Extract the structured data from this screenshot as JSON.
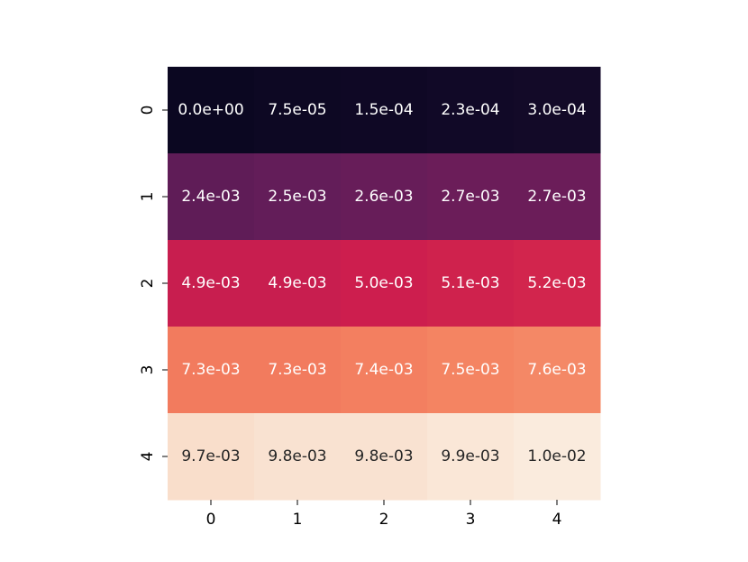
{
  "chart_data": {
    "type": "heatmap",
    "title": "",
    "xlabel": "",
    "ylabel": "",
    "x_categories": [
      "0",
      "1",
      "2",
      "3",
      "4"
    ],
    "y_categories": [
      "0",
      "1",
      "2",
      "3",
      "4"
    ],
    "values": [
      [
        0.0,
        7.5e-05,
        0.00015,
        0.00023,
        0.0003
      ],
      [
        0.0024,
        0.0025,
        0.0026,
        0.0027,
        0.0027
      ],
      [
        0.0049,
        0.0049,
        0.005,
        0.0051,
        0.0052
      ],
      [
        0.0073,
        0.0073,
        0.0074,
        0.0075,
        0.0076
      ],
      [
        0.0097,
        0.0098,
        0.0098,
        0.0099,
        0.01
      ]
    ],
    "labels": [
      [
        "0.0e+00",
        "7.5e-05",
        "1.5e-04",
        "2.3e-04",
        "3.0e-04"
      ],
      [
        "2.4e-03",
        "2.5e-03",
        "2.6e-03",
        "2.7e-03",
        "2.7e-03"
      ],
      [
        "4.9e-03",
        "4.9e-03",
        "5.0e-03",
        "5.1e-03",
        "5.2e-03"
      ],
      [
        "7.3e-03",
        "7.3e-03",
        "7.4e-03",
        "7.5e-03",
        "7.6e-03"
      ],
      [
        "9.7e-03",
        "9.8e-03",
        "9.8e-03",
        "9.9e-03",
        "1.0e-02"
      ]
    ],
    "colormap": "rocket",
    "vmin": 0.0,
    "vmax": 0.01,
    "colorbar": false,
    "grid": false
  }
}
